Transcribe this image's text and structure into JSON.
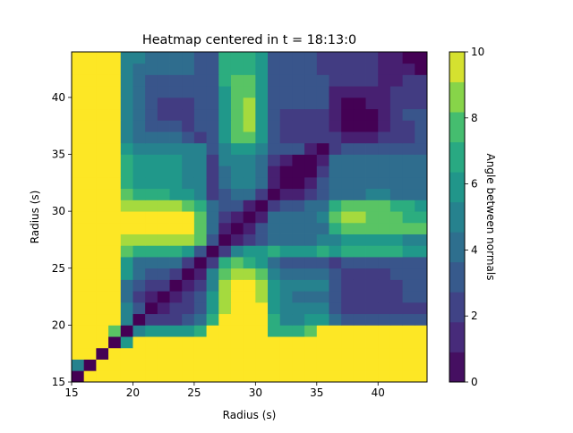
{
  "chart_data": {
    "type": "heatmap",
    "title": "Heatmap centered in t = 18:13:0",
    "xlabel": "Radius (s)",
    "ylabel": "Radius (s)",
    "xlim": [
      15,
      44
    ],
    "ylim": [
      15,
      44
    ],
    "x_ticks": [
      15,
      20,
      25,
      30,
      35,
      40
    ],
    "y_ticks": [
      15,
      20,
      25,
      30,
      35,
      40
    ],
    "colorbar": {
      "label": "Angle between normals",
      "colormap": "viridis",
      "min": 0,
      "max": 10,
      "ticks": [
        0,
        2,
        4,
        6,
        8,
        10
      ]
    },
    "x_cells": [
      15,
      16,
      17,
      18,
      19,
      20,
      21,
      22,
      23,
      24,
      25,
      26,
      27,
      28,
      29,
      30,
      31,
      32,
      33,
      34,
      35,
      36,
      37,
      38,
      39,
      40,
      41,
      42,
      43
    ],
    "y_cells": [
      15,
      16,
      17,
      18,
      19,
      20,
      21,
      22,
      23,
      24,
      25,
      26,
      27,
      28,
      29,
      30,
      31,
      32,
      33,
      34,
      35,
      36,
      37,
      38,
      39,
      40,
      41,
      42,
      43
    ],
    "z": [
      [
        0,
        10,
        10,
        10,
        10,
        10,
        10,
        10,
        10,
        10,
        10,
        10,
        10,
        10,
        10,
        10,
        10,
        10,
        10,
        10,
        10,
        10,
        10,
        10,
        10,
        10,
        10,
        10,
        10
      ],
      [
        5,
        0,
        10,
        10,
        10,
        10,
        10,
        10,
        10,
        10,
        10,
        10,
        10,
        10,
        10,
        10,
        10,
        10,
        10,
        10,
        10,
        10,
        10,
        10,
        10,
        10,
        10,
        10,
        10
      ],
      [
        10,
        10,
        0,
        10,
        10,
        10,
        10,
        10,
        10,
        10,
        10,
        10,
        10,
        10,
        10,
        10,
        10,
        10,
        10,
        10,
        10,
        10,
        10,
        10,
        10,
        10,
        10,
        10,
        10
      ],
      [
        10,
        10,
        10,
        0,
        6,
        10,
        10,
        10,
        10,
        10,
        10,
        10,
        10,
        10,
        10,
        10,
        10,
        10,
        10,
        10,
        10,
        10,
        10,
        10,
        10,
        10,
        10,
        10,
        10
      ],
      [
        10,
        10,
        10,
        8,
        0,
        5,
        6,
        6,
        6,
        6,
        7,
        10,
        10,
        10,
        10,
        10,
        7,
        7,
        7,
        8,
        10,
        10,
        10,
        10,
        10,
        10,
        10,
        10,
        10
      ],
      [
        10,
        10,
        10,
        10,
        5,
        0,
        2,
        2,
        2,
        3,
        4,
        7,
        10,
        10,
        10,
        10,
        7,
        5,
        5,
        6,
        6,
        4,
        3,
        3,
        3,
        3,
        3,
        3,
        3
      ],
      [
        10,
        10,
        10,
        10,
        5,
        3,
        0,
        1,
        2,
        2,
        3,
        6,
        9,
        10,
        10,
        10,
        6,
        5,
        5,
        5,
        5,
        3,
        2,
        2,
        2,
        2,
        2,
        2,
        2
      ],
      [
        10,
        10,
        10,
        10,
        4,
        2,
        1,
        0,
        1,
        2,
        3,
        6,
        9,
        10,
        10,
        9,
        6,
        5,
        4,
        4,
        4,
        3,
        2,
        2,
        2,
        2,
        2,
        3,
        3
      ],
      [
        10,
        10,
        10,
        10,
        4,
        3,
        2,
        2,
        0,
        1,
        2,
        5,
        9,
        10,
        10,
        9,
        6,
        5,
        5,
        5,
        5,
        3,
        2,
        2,
        2,
        2,
        2,
        3,
        3
      ],
      [
        10,
        10,
        10,
        10,
        6,
        4,
        3,
        3,
        2,
        0,
        1,
        5,
        8,
        9,
        9,
        8,
        5,
        4,
        4,
        4,
        4,
        3,
        2,
        2,
        2,
        2,
        3,
        3,
        3
      ],
      [
        10,
        10,
        10,
        10,
        6,
        4,
        4,
        4,
        4,
        2,
        0,
        2,
        7,
        8,
        7,
        6,
        4,
        3,
        3,
        3,
        3,
        2,
        3,
        3,
        3,
        3,
        3,
        3,
        3
      ],
      [
        10,
        10,
        10,
        10,
        8,
        7,
        7,
        7,
        7,
        6,
        3,
        0,
        2,
        5,
        6,
        6,
        7,
        6,
        6,
        6,
        7,
        6,
        7,
        7,
        7,
        7,
        7,
        6,
        6
      ],
      [
        10,
        10,
        10,
        10,
        9,
        9,
        9,
        9,
        9,
        9,
        8,
        3,
        0,
        1,
        2,
        3,
        4,
        4,
        4,
        4,
        5,
        5,
        6,
        6,
        6,
        6,
        6,
        5,
        5
      ],
      [
        10,
        10,
        10,
        10,
        10,
        10,
        10,
        10,
        10,
        10,
        8,
        4,
        1,
        0,
        1,
        3,
        4,
        4,
        4,
        4,
        4,
        7,
        8,
        8,
        8,
        8,
        8,
        8,
        8
      ],
      [
        10,
        10,
        10,
        10,
        10,
        10,
        10,
        10,
        10,
        10,
        8,
        4,
        2,
        1,
        0,
        1,
        4,
        4,
        4,
        4,
        5,
        8,
        9,
        9,
        8,
        8,
        8,
        7,
        7
      ],
      [
        10,
        10,
        10,
        10,
        9,
        9,
        9,
        9,
        9,
        8,
        7,
        4,
        3,
        3,
        1,
        0,
        2,
        3,
        3,
        4,
        4,
        7,
        8,
        8,
        8,
        8,
        7,
        7,
        6
      ],
      [
        10,
        10,
        10,
        10,
        8,
        7,
        7,
        7,
        6,
        6,
        5,
        2,
        3,
        4,
        4,
        2,
        0,
        1,
        1,
        2,
        3,
        4,
        4,
        4,
        5,
        5,
        4,
        4,
        4
      ],
      [
        10,
        10,
        10,
        10,
        7,
        6,
        6,
        6,
        6,
        5,
        5,
        2,
        4,
        5,
        5,
        4,
        1,
        0,
        0,
        1,
        3,
        4,
        4,
        4,
        4,
        4,
        4,
        4,
        4
      ],
      [
        10,
        10,
        10,
        10,
        7,
        6,
        6,
        6,
        6,
        5,
        5,
        2,
        4,
        5,
        5,
        4,
        1,
        0,
        0,
        0,
        2,
        4,
        4,
        4,
        4,
        4,
        4,
        4,
        4
      ],
      [
        10,
        10,
        10,
        10,
        7,
        6,
        6,
        6,
        6,
        5,
        5,
        2,
        5,
        5,
        5,
        4,
        2,
        1,
        0,
        0,
        1,
        4,
        4,
        4,
        4,
        4,
        4,
        4,
        4
      ],
      [
        10,
        10,
        10,
        10,
        6,
        5,
        5,
        5,
        5,
        5,
        5,
        3,
        5,
        6,
        6,
        5,
        3,
        3,
        3,
        1,
        0,
        2,
        3,
        3,
        3,
        3,
        3,
        3,
        3
      ],
      [
        10,
        10,
        10,
        10,
        5,
        4,
        4,
        4,
        4,
        3,
        2,
        3,
        6,
        8,
        8,
        6,
        3,
        2,
        2,
        2,
        2,
        2,
        1,
        1,
        1,
        2,
        2,
        2,
        3
      ],
      [
        10,
        10,
        10,
        10,
        5,
        4,
        3,
        3,
        3,
        2,
        3,
        3,
        6,
        8,
        9,
        6,
        3,
        2,
        2,
        2,
        2,
        1,
        0,
        0,
        0,
        1,
        2,
        2,
        3
      ],
      [
        10,
        10,
        10,
        10,
        5,
        4,
        3,
        2,
        2,
        2,
        3,
        3,
        6,
        8,
        9,
        6,
        3,
        2,
        2,
        2,
        2,
        1,
        0,
        0,
        0,
        1,
        2,
        3,
        3
      ],
      [
        10,
        10,
        10,
        10,
        5,
        4,
        3,
        2,
        2,
        2,
        3,
        3,
        6,
        8,
        9,
        6,
        3,
        3,
        3,
        3,
        3,
        1,
        0,
        0,
        1,
        1,
        2,
        2,
        2
      ],
      [
        10,
        10,
        10,
        10,
        5,
        4,
        3,
        3,
        3,
        3,
        3,
        3,
        6,
        8,
        8,
        6,
        3,
        3,
        3,
        3,
        3,
        1,
        1,
        1,
        1,
        1,
        2,
        2,
        2
      ],
      [
        10,
        10,
        10,
        10,
        5,
        4,
        3,
        3,
        3,
        3,
        3,
        3,
        7,
        8,
        8,
        6,
        3,
        3,
        3,
        3,
        3,
        2,
        2,
        2,
        2,
        1,
        1,
        2,
        2
      ],
      [
        10,
        10,
        10,
        10,
        5,
        4,
        4,
        4,
        4,
        4,
        3,
        3,
        7,
        7,
        7,
        6,
        3,
        3,
        3,
        3,
        2,
        2,
        2,
        2,
        2,
        1,
        1,
        1,
        0
      ],
      [
        10,
        10,
        10,
        10,
        5,
        5,
        4,
        4,
        4,
        4,
        3,
        3,
        7,
        7,
        7,
        6,
        3,
        3,
        3,
        3,
        2,
        2,
        2,
        2,
        2,
        1,
        1,
        0,
        0
      ]
    ]
  }
}
